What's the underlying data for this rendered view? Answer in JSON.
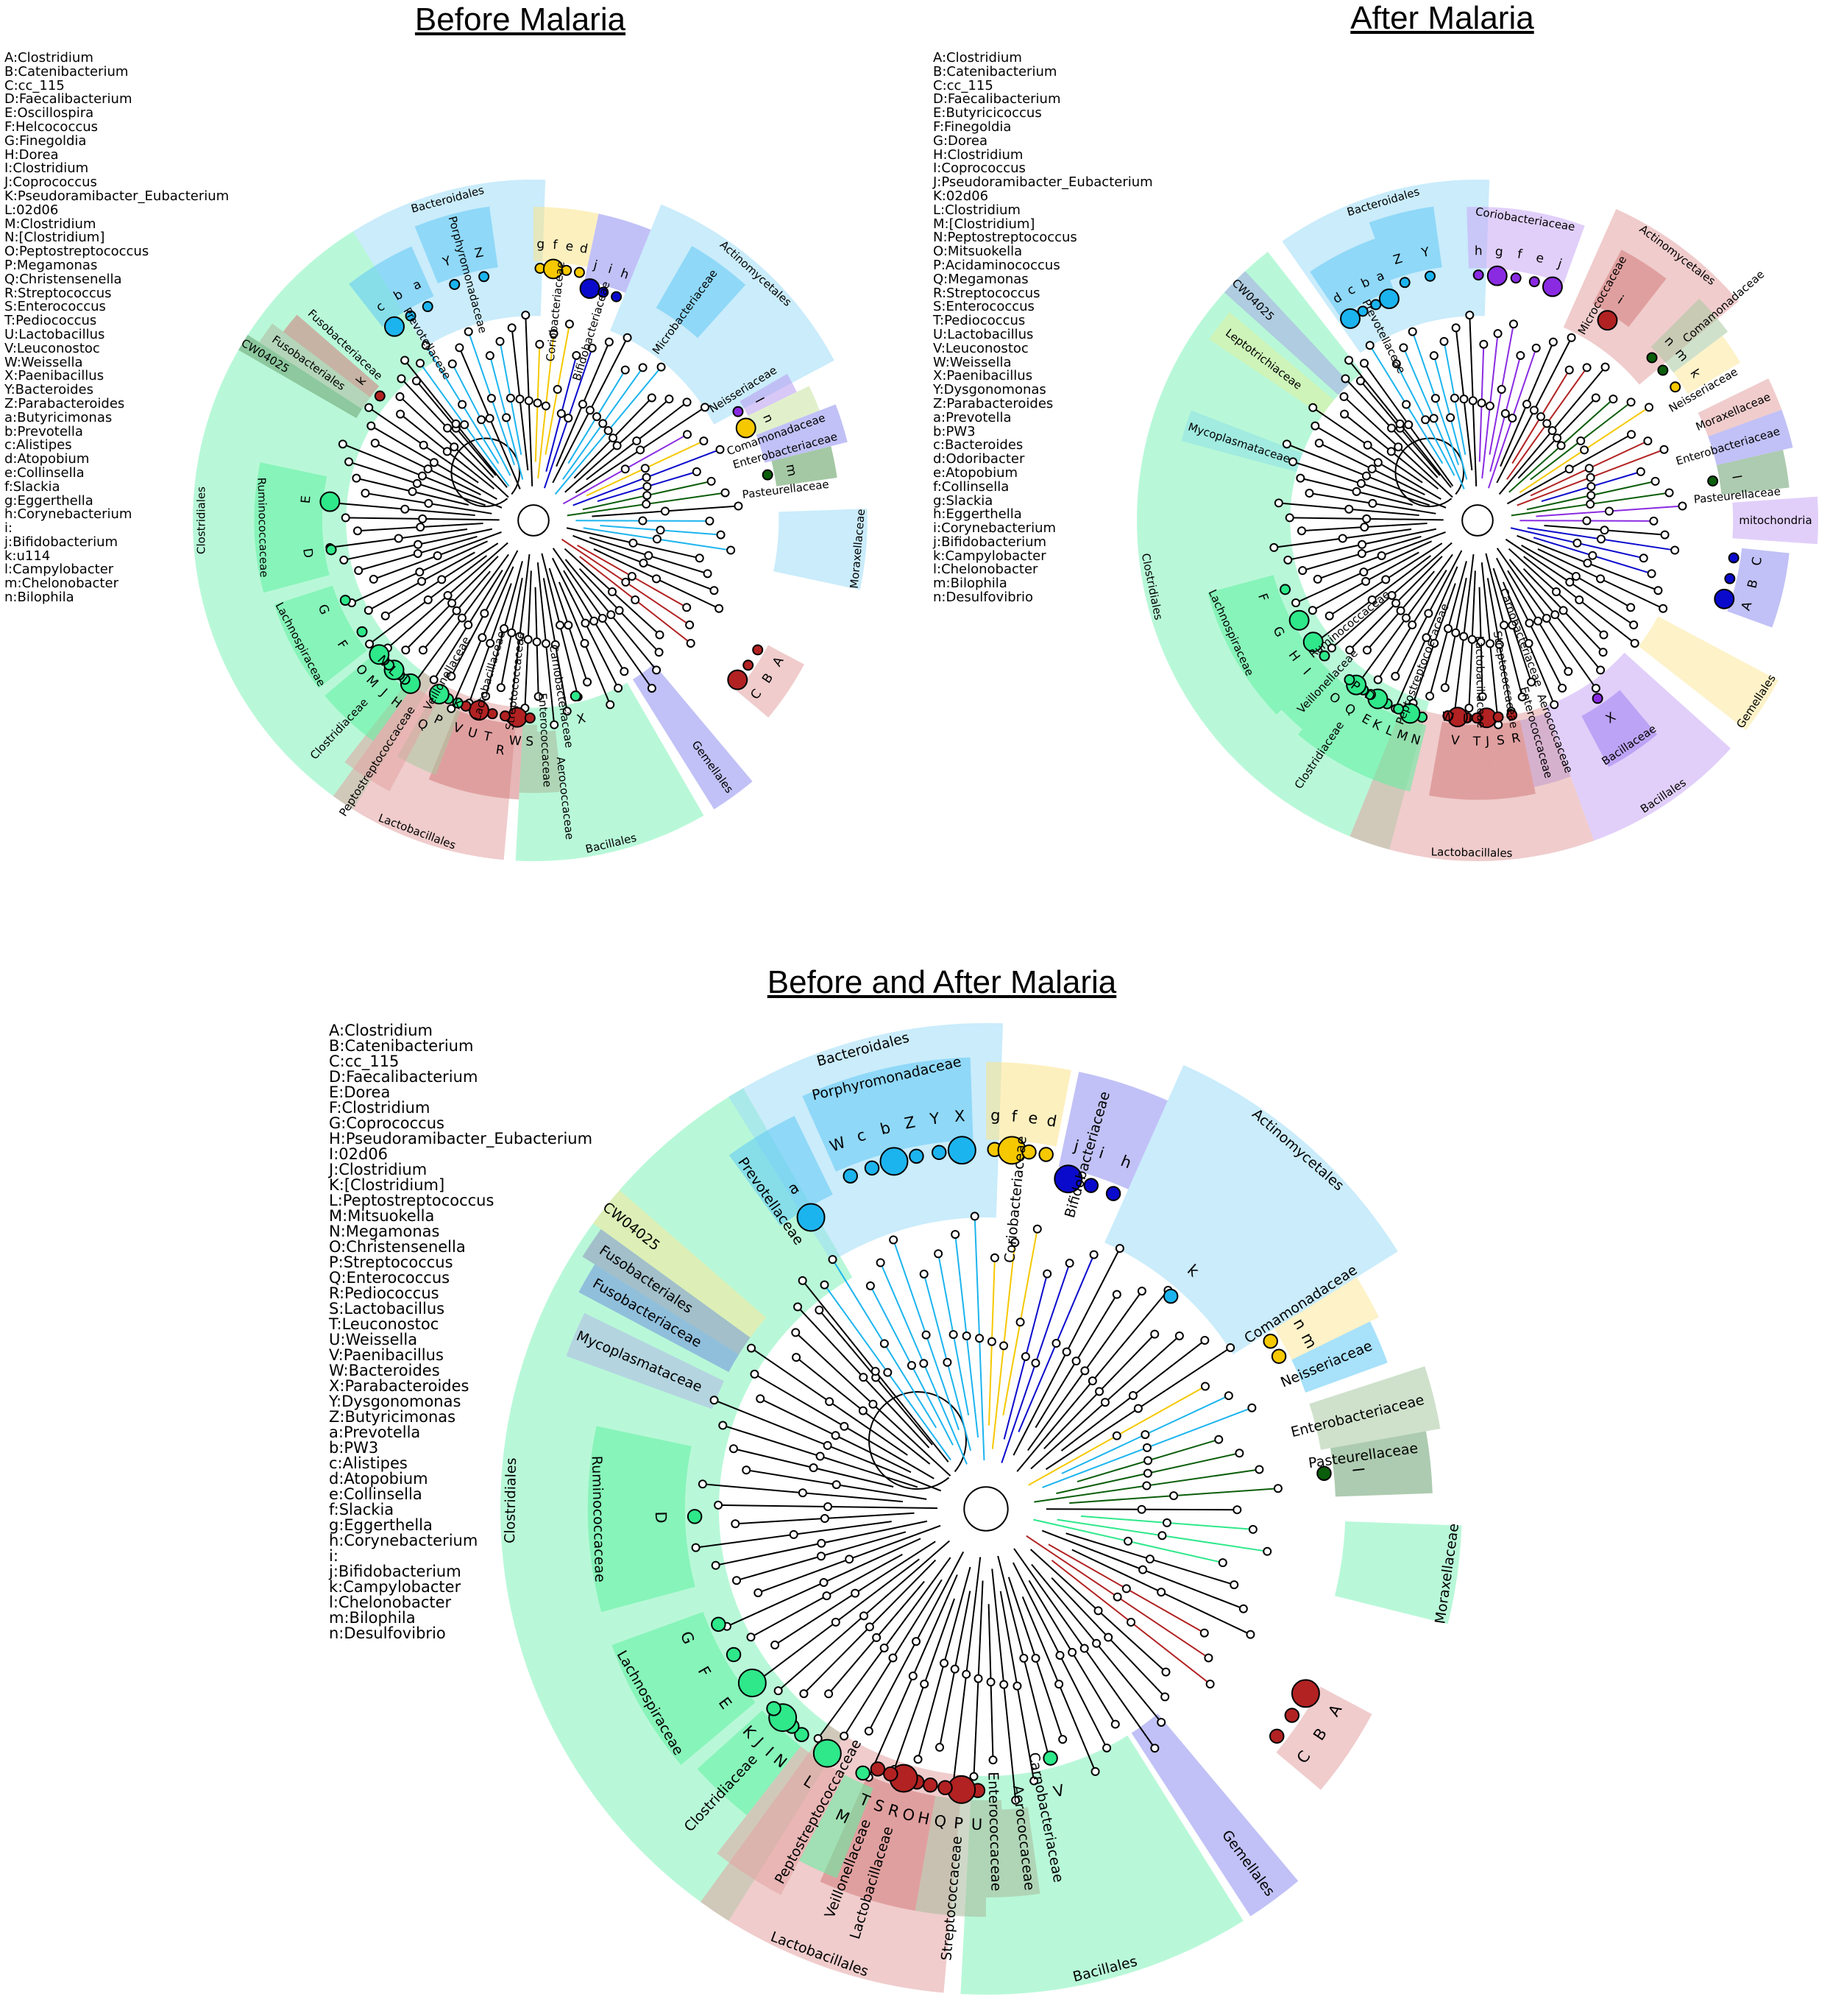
{
  "panels": [
    {
      "title": "Before Malaria",
      "legend": [
        "A:Clostridium",
        "B:Catenibacterium",
        "C:cc_115",
        "D:Faecalibacterium",
        "E:Oscillospira",
        "F:Helcococcus",
        "G:Finegoldia",
        "H:Dorea",
        "I:Clostridium",
        "J:Coprococcus",
        "K:Pseudoramibacter_Eubacterium",
        "L:02d06",
        "M:Clostridium",
        "N:[Clostridium]",
        "O:Peptostreptococcus",
        "P:Megamonas",
        "Q:Christensenella",
        "R:Streptococcus",
        "S:Enterococcus",
        "T:Pediococcus",
        "U:Lactobacillus",
        "V:Leuconostoc",
        "W:Weissella",
        "X:Paenibacillus",
        "Y:Bacteroides",
        "Z:Parabacteroides",
        "a:Butyricimonas",
        "b:Prevotella",
        "c:Alistipes",
        "d:Atopobium",
        "e:Collinsella",
        "f:Slackia",
        "g:Eggerthella",
        "h:Corynebacterium",
        "i:",
        "j:Bifidobacterium",
        "k:u114",
        "l:Campylobacter",
        "m:Chelonobacter",
        "n:Bilophila"
      ],
      "clades": [
        {
          "label": "Clostridiales",
          "color": "#7ef2b8",
          "dot": "#2ee88a",
          "letters": []
        },
        {
          "label": "Bacteroidales",
          "color": "#9fdcf7",
          "dot": "#1cb4ee",
          "letters": []
        },
        {
          "label": "Actinomycetales",
          "color": "#9fdcf7",
          "dot": "#1cb4ee",
          "letters": []
        },
        {
          "label": "Lactobacillales",
          "color": "#e3a3a3",
          "dot": "#b22222",
          "letters": []
        },
        {
          "label": "Bacillales",
          "color": "#7ef2b8",
          "dot": "#2ee88a",
          "letters": [
            "X"
          ]
        },
        {
          "label": "Gemellales",
          "color": "#8e8ef0",
          "dot": "#0a0acc",
          "letters": []
        },
        {
          "label": "Prevotellaceae",
          "color": "#5fc8f5",
          "dot": "#1cb4ee",
          "letters": [
            "c",
            "b",
            "a"
          ]
        },
        {
          "label": "Porphyromonadaceae",
          "color": "#5fc8f5",
          "dot": "#1cb4ee",
          "letters": [
            "Y",
            "Z"
          ]
        },
        {
          "label": "Coriobacteriaceae",
          "color": "#fbe38a",
          "dot": "#f5c800",
          "letters": [
            "g",
            "f",
            "e",
            "d"
          ]
        },
        {
          "label": "Bifidobacteriaceae",
          "color": "#8e8ef0",
          "dot": "#0a0acc",
          "letters": [
            "j",
            "i",
            "h"
          ]
        },
        {
          "label": "Microbacteriaceae",
          "color": "#5fc8f5",
          "dot": "#1cb4ee",
          "letters": []
        },
        {
          "label": "Neisseriaceae",
          "color": "#b89af0",
          "dot": "#8a2be2",
          "letters": [
            "l"
          ]
        },
        {
          "label": "Comamonadaceae",
          "color": "#c8e4a0",
          "dot": "#f5c800",
          "letters": [
            "n"
          ]
        },
        {
          "label": "Enterobacteriaceae",
          "color": "#8e8ef0",
          "dot": "#0a0acc",
          "letters": []
        },
        {
          "label": "Pasteurellaceae",
          "color": "#5a9a5a",
          "dot": "#0b5e0b",
          "letters": [
            "m"
          ]
        },
        {
          "label": "Moraxellaceae",
          "color": "#9fdcf7",
          "dot": "#1cb4ee",
          "letters": []
        },
        {
          "label": "",
          "color": "#e3a3a3",
          "dot": "#b22222",
          "letters": [
            "A",
            "B",
            "C"
          ]
        },
        {
          "label": "Lactobacillaceae",
          "color": "#d47a7a",
          "dot": "#b22222",
          "letters": [
            "T",
            "U",
            "V"
          ]
        },
        {
          "label": "Streptococcaceae",
          "color": "#d47a7a",
          "dot": "#b22222",
          "letters": [
            "W",
            "R"
          ]
        },
        {
          "label": "Enterococcaceae",
          "color": "#a8b89a",
          "dot": "#b22222",
          "letters": [
            "S"
          ]
        },
        {
          "label": "Aerococcaceae",
          "color": "#a8b89a",
          "dot": "#b22222",
          "letters": []
        },
        {
          "label": "Carnobacteriaceae",
          "color": "#a8b89a",
          "dot": "#b22222",
          "letters": []
        },
        {
          "label": "Veillonellaceae",
          "color": "#a8c8a0",
          "dot": "#2ee88a",
          "letters": [
            "K",
            "P",
            "Q"
          ]
        },
        {
          "label": "Peptostreptococcaceae",
          "color": "#e3a3a3",
          "dot": "#2ee88a",
          "letters": []
        },
        {
          "label": "Clostridiaceae",
          "color": "#5ef0a0",
          "dot": "#2ee88a",
          "letters": [
            "H",
            "I",
            "J",
            "L",
            "M",
            "N",
            "O"
          ]
        },
        {
          "label": "Lachnospiraceae",
          "color": "#5ef0a0",
          "dot": "#2ee88a",
          "letters": [
            "F",
            "G"
          ]
        },
        {
          "label": "Ruminococcaceae",
          "color": "#5ef0a0",
          "dot": "#2ee88a",
          "letters": [
            "D",
            "E"
          ]
        },
        {
          "label": "CW04025",
          "color": "#6aa070",
          "dot": "#0b5e0b",
          "letters": []
        },
        {
          "label": "Fusobacteriales",
          "color": "#b0b8a0",
          "dot": "#b22222",
          "letters": []
        },
        {
          "label": "Fusobacteriaceae",
          "color": "#d47a7a",
          "dot": "#b22222",
          "letters": [
            "k"
          ]
        }
      ]
    },
    {
      "title": "After Malaria",
      "legend": [
        "A:Clostridium",
        "B:Catenibacterium",
        "C:cc_115",
        "D:Faecalibacterium",
        "E:Butyricicoccus",
        "F:Finegoldia",
        "G:Dorea",
        "H:Clostridium",
        "I:Coprococcus",
        "J:Pseudoramibacter_Eubacterium",
        "K:02d06",
        "L:Clostridium",
        "M:[Clostridium]",
        "N:Peptostreptococcus",
        "O:Mitsuokella",
        "P:Acidaminococcus",
        "Q:Megamonas",
        "R:Streptococcus",
        "S:Enterococcus",
        "T:Pediococcus",
        "U:Lactobacillus",
        "V:Leuconostoc",
        "W:Weissella",
        "X:Paenibacillus",
        "Y:Dysgonomonas",
        "Z:Parabacteroides",
        "a:Prevotella",
        "b:PW3",
        "c:Bacteroides",
        "d:Odoribacter",
        "e:Atopobium",
        "f:Collinsella",
        "g:Slackia",
        "h:Eggerthella",
        "i:Corynebacterium",
        "j:Bifidobacterium",
        "k:Campylobacter",
        "l:Chelonobacter",
        "m:Bilophila",
        "n:Desulfovibrio"
      ],
      "clades": [
        {
          "label": "Clostridiales",
          "color": "#7ef2b8",
          "dot": "#2ee88a",
          "letters": []
        },
        {
          "label": "Bacteroidales",
          "color": "#9fdcf7",
          "dot": "#1cb4ee",
          "letters": []
        },
        {
          "label": "Actinomycetales",
          "color": "#e3a3a3",
          "dot": "#b22222",
          "letters": []
        },
        {
          "label": "Lactobacillales",
          "color": "#e3a3a3",
          "dot": "#b22222",
          "letters": []
        },
        {
          "label": "Bacillales",
          "color": "#c8a8f5",
          "dot": "#8a2be2",
          "letters": []
        },
        {
          "label": "Gemellales",
          "color": "#fbe79a",
          "dot": "#f5c800",
          "letters": []
        },
        {
          "label": "Prevotellaceae",
          "color": "#5fc8f5",
          "dot": "#1cb4ee",
          "letters": [
            "d",
            "c",
            "b",
            "a"
          ]
        },
        {
          "label": "",
          "color": "#5fc8f5",
          "dot": "#1cb4ee",
          "letters": [
            "Z",
            "Y"
          ]
        },
        {
          "label": "Coriobacteriaceae",
          "color": "#c8a8f5",
          "dot": "#8a2be2",
          "letters": [
            "h",
            "g",
            "f",
            "e",
            "j"
          ]
        },
        {
          "label": "Micrococcaceae",
          "color": "#d47a7a",
          "dot": "#b22222",
          "letters": [
            "i"
          ]
        },
        {
          "label": "Comamonadaceae",
          "color": "#a8c8a0",
          "dot": "#0b5e0b",
          "letters": [
            "n",
            "m"
          ]
        },
        {
          "label": "Neisseriaceae",
          "color": "#fbe79a",
          "dot": "#f5c800",
          "letters": [
            "k"
          ]
        },
        {
          "label": "Moraxellaceae",
          "color": "#e3a3a3",
          "dot": "#b22222",
          "letters": []
        },
        {
          "label": "Enterobacteriaceae",
          "color": "#8e8ef0",
          "dot": "#0a0acc",
          "letters": []
        },
        {
          "label": "Pasteurellaceae",
          "color": "#6aa070",
          "dot": "#0b5e0b",
          "letters": [
            "l"
          ]
        },
        {
          "label": "mitochondria",
          "color": "#c8a8f5",
          "dot": "#8a2be2",
          "letters": []
        },
        {
          "label": "",
          "color": "#8e8ef0",
          "dot": "#0a0acc",
          "letters": [
            "C",
            "B",
            "A"
          ]
        },
        {
          "label": "Bacillaceae",
          "color": "#a080f0",
          "dot": "#8a2be2",
          "letters": [
            "X"
          ]
        },
        {
          "label": "Lactobacillaceae",
          "color": "#d47a7a",
          "dot": "#b22222",
          "letters": [
            "J",
            "T",
            "U",
            "V",
            "W"
          ]
        },
        {
          "label": "Streptococcaceae",
          "color": "#d47a7a",
          "dot": "#b22222",
          "letters": [
            "R",
            "S"
          ]
        },
        {
          "label": "Enterococcaceae",
          "color": "#c09ad0",
          "dot": "#b22222",
          "letters": []
        },
        {
          "label": "Aerococcaceae",
          "color": "#c09ad0",
          "dot": "#b22222",
          "letters": []
        },
        {
          "label": "Carnobacteriaceae",
          "color": "#c09ad0",
          "dot": "#b22222",
          "letters": []
        },
        {
          "label": "Peptostreptococcaceae",
          "color": "#5ef0a0",
          "dot": "#2ee88a",
          "letters": [
            "N",
            "M",
            "L",
            "K"
          ]
        },
        {
          "label": "Clostridiaceae",
          "color": "#5ef0a0",
          "dot": "#2ee88a",
          "letters": [
            "E",
            "D",
            "Q",
            "P",
            "O"
          ]
        },
        {
          "label": "Veillonellaceae",
          "color": "#5ef0a0",
          "dot": "#2ee88a",
          "letters": []
        },
        {
          "label": "Ruminococcaceae",
          "color": "#5ef0a0",
          "dot": "#2ee88a",
          "letters": [
            "I",
            "H"
          ]
        },
        {
          "label": "Lachnospiraceae",
          "color": "#5ef0a0",
          "dot": "#2ee88a",
          "letters": [
            "G",
            "F"
          ]
        },
        {
          "label": "Mycoplasmataceae",
          "color": "#8ee0e8",
          "dot": "#1cb4ee",
          "letters": []
        },
        {
          "label": "Leptotrichiaceae",
          "color": "#e0f0a0",
          "dot": "#f5c800",
          "letters": []
        },
        {
          "label": "CW04025",
          "color": "#a8a8e8",
          "dot": "#0a0acc",
          "letters": []
        }
      ]
    },
    {
      "title": "Before and After Malaria",
      "legend": [
        "A:Clostridium",
        "B:Catenibacterium",
        "C:cc_115",
        "D:Faecalibacterium",
        "E:Dorea",
        "F:Clostridium",
        "G:Coprococcus",
        "H:Pseudoramibacter_Eubacterium",
        "I:02d06",
        "J:Clostridium",
        "K:[Clostridium]",
        "L:Peptostreptococcus",
        "M:Mitsuokella",
        "N:Megamonas",
        "O:Christensenella",
        "P:Streptococcus",
        "Q:Enterococcus",
        "R:Pediococcus",
        "S:Lactobacillus",
        "T:Leuconostoc",
        "U:Weissella",
        "V:Paenibacillus",
        "W:Bacteroides",
        "X:Parabacteroides",
        "Y:Dysgonomonas",
        "Z:Butyricimonas",
        "a:Prevotella",
        "b:PW3",
        "c:Alistipes",
        "d:Atopobium",
        "e:Collinsella",
        "f:Slackia",
        "g:Eggerthella",
        "h:Corynebacterium",
        "i:",
        "j:Bifidobacterium",
        "k:Campylobacter",
        "l:Chelonobacter",
        "m:Bilophila",
        "n:Desulfovibrio"
      ],
      "clades": [
        {
          "label": "Clostridiales",
          "color": "#7ef2b8",
          "dot": "#2ee88a",
          "letters": []
        },
        {
          "label": "Bacteroidales",
          "color": "#9fdcf7",
          "dot": "#1cb4ee",
          "letters": []
        },
        {
          "label": "Actinomycetales",
          "color": "#9fdcf7",
          "dot": "#1cb4ee",
          "letters": [
            "k"
          ]
        },
        {
          "label": "Lactobacillales",
          "color": "#e3a3a3",
          "dot": "#b22222",
          "letters": []
        },
        {
          "label": "Bacillales",
          "color": "#7ef2b8",
          "dot": "#2ee88a",
          "letters": [
            "V"
          ]
        },
        {
          "label": "Gemellales",
          "color": "#8e8ef0",
          "dot": "#0a0acc",
          "letters": []
        },
        {
          "label": "Prevotellaceae",
          "color": "#5fc8f5",
          "dot": "#1cb4ee",
          "letters": [
            "a"
          ]
        },
        {
          "label": "Porphyromonadaceae",
          "color": "#5fc8f5",
          "dot": "#1cb4ee",
          "letters": [
            "W",
            "c",
            "b",
            "Z",
            "Y",
            "X"
          ]
        },
        {
          "label": "Coriobacteriaceae",
          "color": "#fbe38a",
          "dot": "#f5c800",
          "letters": [
            "g",
            "f",
            "e",
            "d"
          ]
        },
        {
          "label": "Bifidobacteriaceae",
          "color": "#8e8ef0",
          "dot": "#0a0acc",
          "letters": [
            "j",
            "i",
            "h"
          ]
        },
        {
          "label": "Comamonadaceae",
          "color": "#fbe79a",
          "dot": "#f5c800",
          "letters": [
            "n",
            "m"
          ]
        },
        {
          "label": "Neisseriaceae",
          "color": "#5fc8f5",
          "dot": "#1cb4ee",
          "letters": []
        },
        {
          "label": "Enterobacteriaceae",
          "color": "#a8c8a0",
          "dot": "#0b5e0b",
          "letters": []
        },
        {
          "label": "Pasteurellaceae",
          "color": "#6aa070",
          "dot": "#0b5e0b",
          "letters": [
            "l"
          ]
        },
        {
          "label": "Moraxellaceae",
          "color": "#7ef2b8",
          "dot": "#2ee88a",
          "letters": []
        },
        {
          "label": "",
          "color": "#e3a3a3",
          "dot": "#b22222",
          "letters": [
            "A",
            "B",
            "C"
          ]
        },
        {
          "label": "Lactobacillaceae",
          "color": "#d47a7a",
          "dot": "#b22222",
          "letters": [
            "H",
            "O",
            "R",
            "S",
            "T"
          ]
        },
        {
          "label": "Streptococcaceae",
          "color": "#a8b89a",
          "dot": "#b22222",
          "letters": [
            "U",
            "P",
            "Q"
          ]
        },
        {
          "label": "Enterococcaceae",
          "color": "#a8b89a",
          "dot": "#b22222",
          "letters": []
        },
        {
          "label": "Aerococcaceae",
          "color": "#a8b89a",
          "dot": "#b22222",
          "letters": []
        },
        {
          "label": "Carnobacteriaceae",
          "color": "#a8b89a",
          "dot": "#b22222",
          "letters": []
        },
        {
          "label": "Peptostreptococcaceae",
          "color": "#e3a3a3",
          "dot": "#2ee88a",
          "letters": [
            "L"
          ]
        },
        {
          "label": "Clostridiaceae",
          "color": "#5ef0a0",
          "dot": "#2ee88a",
          "letters": [
            "N",
            "I",
            "J",
            "K"
          ]
        },
        {
          "label": "Veillonellaceae",
          "color": "#5ef0a0",
          "dot": "#2ee88a",
          "letters": [
            "M"
          ]
        },
        {
          "label": "Lachnospiraceae",
          "color": "#5ef0a0",
          "dot": "#2ee88a",
          "letters": [
            "E",
            "F",
            "G"
          ]
        },
        {
          "label": "Ruminococcaceae",
          "color": "#5ef0a0",
          "dot": "#2ee88a",
          "letters": [
            "D"
          ]
        },
        {
          "label": "Mycoplasmataceae",
          "color": "#b0b8e8",
          "dot": "#8a2be2",
          "letters": []
        },
        {
          "label": "Fusobacteriaceae",
          "color": "#7090e0",
          "dot": "#0a0acc",
          "letters": []
        },
        {
          "label": "Fusobacteriales",
          "color": "#9090c0",
          "dot": "#b22222",
          "letters": []
        },
        {
          "label": "CW04025",
          "color": "#fbe79a",
          "dot": "#f5c800",
          "letters": []
        }
      ]
    }
  ]
}
